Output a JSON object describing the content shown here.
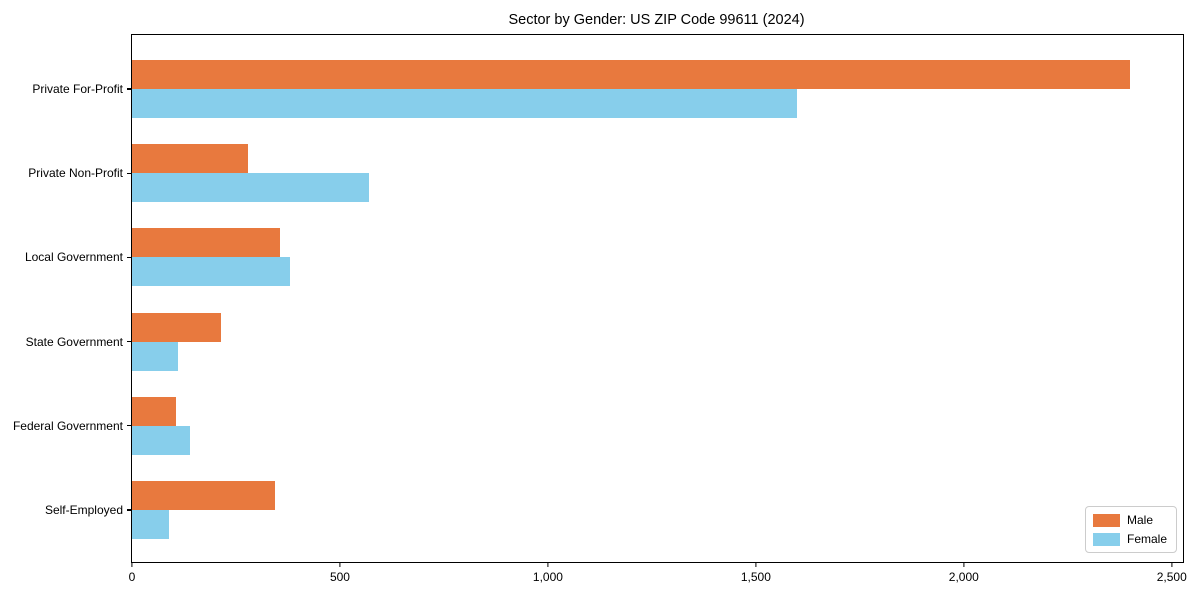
{
  "chart": {
    "title": "Sector by Gender: US ZIP Code 99611 (2024)",
    "legend": {
      "male_label": "Male",
      "female_label": "Female"
    }
  },
  "colors": {
    "male": "#E8793E",
    "female": "#87CEEB",
    "axis": "#000000",
    "legend_border": "#CCCCCC",
    "background": "#FFFFFF"
  },
  "chart_data": {
    "type": "bar",
    "orientation": "horizontal",
    "title": "Sector by Gender: US ZIP Code 99611 (2024)",
    "categories": [
      "Private For-Profit",
      "Private Non-Profit",
      "Local Government",
      "State Government",
      "Federal Government",
      "Self-Employed"
    ],
    "series": [
      {
        "name": "Male",
        "color": "#E8793E",
        "values": [
          2400,
          280,
          355,
          215,
          105,
          345
        ]
      },
      {
        "name": "Female",
        "color": "#87CEEB",
        "values": [
          1600,
          570,
          380,
          110,
          140,
          90
        ]
      }
    ],
    "xlabel": "",
    "ylabel": "",
    "xlim": [
      0,
      2527
    ],
    "xticks": [
      0,
      500,
      1000,
      1500,
      2000,
      2500
    ],
    "xtick_labels": [
      "0",
      "500",
      "1,000",
      "1,500",
      "2,000",
      "2,500"
    ],
    "grid": false,
    "legend_position": "lower right",
    "plot_background": "#FFFFFF"
  }
}
